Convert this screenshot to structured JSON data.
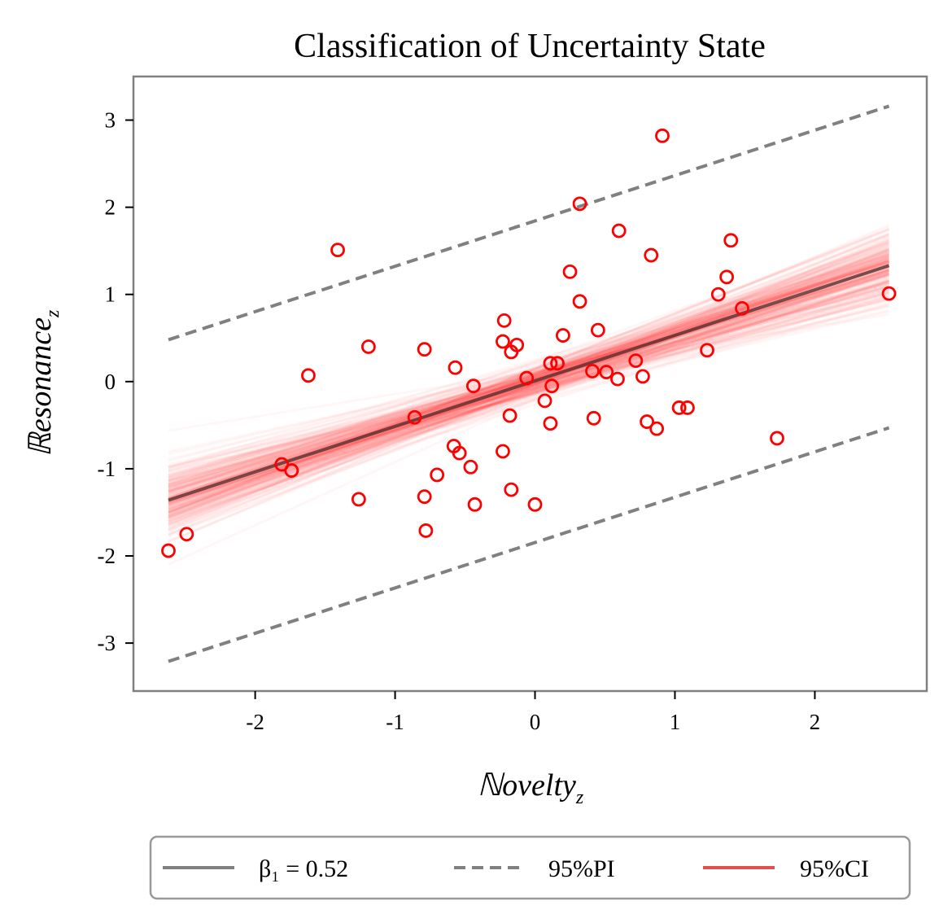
{
  "chart_data": {
    "type": "scatter",
    "title": "Classification of Uncertainty State",
    "xlabel": "ℕovelty",
    "xlabel_sub": "z",
    "ylabel": "ℝesonance",
    "ylabel_sub": "z",
    "xlim": [
      -2.87,
      2.8
    ],
    "ylim": [
      -3.55,
      3.5
    ],
    "x_ticks": [
      -2,
      -1,
      0,
      1,
      2
    ],
    "x_tick_labels": [
      "-2",
      "-1",
      "0",
      "1",
      "2"
    ],
    "y_ticks": [
      -3,
      -2,
      -1,
      0,
      1,
      2,
      3
    ],
    "y_tick_labels": [
      "-3",
      "-2",
      "-1",
      "0",
      "1",
      "2",
      "3"
    ],
    "fit_line": {
      "name": "β₁ = 0.52",
      "x": [
        -2.62,
        2.53
      ],
      "y": [
        -1.36,
        1.33
      ]
    },
    "pi_upper": {
      "x": [
        -2.62,
        2.53
      ],
      "y": [
        0.48,
        3.16
      ]
    },
    "pi_lower": {
      "x": [
        -2.62,
        2.53
      ],
      "y": [
        -3.21,
        -0.53
      ]
    },
    "ci_band": {
      "center_x": 0.0,
      "center_y": 0.0,
      "slope": 0.52,
      "slope_sd": 0.075,
      "intercept_sd": 0.1
    },
    "points": {
      "x": [
        -2.62,
        -2.49,
        -1.81,
        -1.74,
        -1.62,
        -1.41,
        -1.26,
        -1.19,
        -0.86,
        -0.79,
        -0.79,
        -0.78,
        -0.7,
        -0.58,
        -0.57,
        -0.54,
        -0.46,
        -0.44,
        -0.43,
        -0.23,
        -0.23,
        -0.22,
        -0.18,
        -0.17,
        -0.17,
        -0.13,
        -0.06,
        0.0,
        0.07,
        0.11,
        0.11,
        0.12,
        0.16,
        0.2,
        0.25,
        0.32,
        0.32,
        0.41,
        0.42,
        0.45,
        0.51,
        0.59,
        0.6,
        0.72,
        0.77,
        0.8,
        0.83,
        0.87,
        0.91,
        1.03,
        1.09,
        1.23,
        1.31,
        1.37,
        1.4,
        1.48,
        1.73,
        2.53
      ],
      "y": [
        -1.94,
        -1.75,
        -0.95,
        -1.02,
        0.07,
        1.51,
        -1.35,
        0.4,
        -0.41,
        -1.32,
        0.37,
        -1.71,
        -1.07,
        -0.74,
        0.16,
        -0.82,
        -0.98,
        -0.05,
        -1.41,
        0.46,
        -0.8,
        0.7,
        -0.39,
        -1.24,
        0.34,
        0.42,
        0.04,
        -1.41,
        -0.22,
        -0.48,
        0.21,
        -0.05,
        0.21,
        0.53,
        1.26,
        0.92,
        2.04,
        0.12,
        -0.42,
        0.59,
        0.11,
        0.03,
        1.73,
        0.24,
        0.06,
        -0.46,
        1.45,
        -0.54,
        2.82,
        -0.3,
        -0.3,
        0.36,
        1.0,
        1.2,
        1.62,
        0.84,
        -0.65,
        1.01
      ]
    },
    "legend": {
      "position": "bottom",
      "entries": [
        "β₁ = 0.52",
        "95%PI",
        "95%CI"
      ]
    },
    "colors": {
      "points": "#ff0000",
      "fit_line": "#5a2a2a",
      "pi": "#808080",
      "ci": "#ff2020",
      "frame": "#808080"
    }
  }
}
